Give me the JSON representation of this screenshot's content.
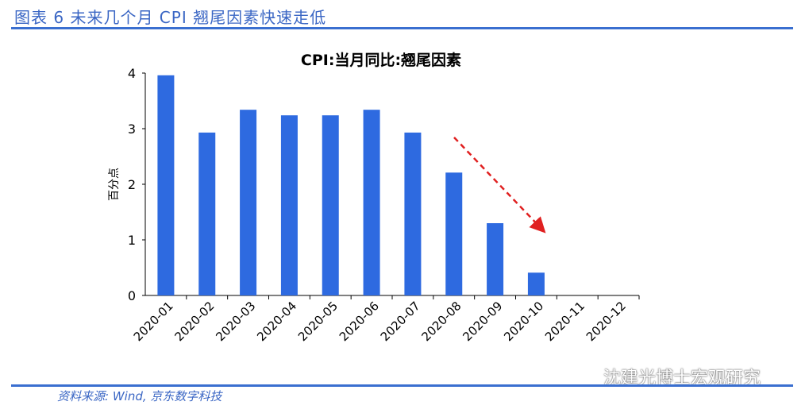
{
  "figure_title": "图表 6 未来几个月 CPI 翘尾因素快速走低",
  "source": "资料来源: Wind, 京东数字科技",
  "watermark": "沈建光博士宏观研究",
  "colors": {
    "bar": "#2e6ae0",
    "arrow": "#e02020",
    "rule": "#3a6fd0"
  },
  "chart_data": {
    "type": "bar",
    "title": "CPI:当月同比:翘尾因素",
    "ylabel": "百分点",
    "xlabel": "",
    "ylim": [
      0,
      4
    ],
    "yticks": [
      0,
      1,
      2,
      3,
      4
    ],
    "categories": [
      "2020-01",
      "2020-02",
      "2020-03",
      "2020-04",
      "2020-05",
      "2020-06",
      "2020-07",
      "2020-08",
      "2020-09",
      "2020-10",
      "2020-11",
      "2020-12"
    ],
    "values": [
      3.96,
      2.93,
      3.34,
      3.24,
      3.24,
      3.34,
      2.93,
      2.21,
      1.3,
      0.41,
      null,
      null
    ],
    "annotation": "red dashed arrow indicating downward trend",
    "grid": false,
    "legend": "none"
  }
}
